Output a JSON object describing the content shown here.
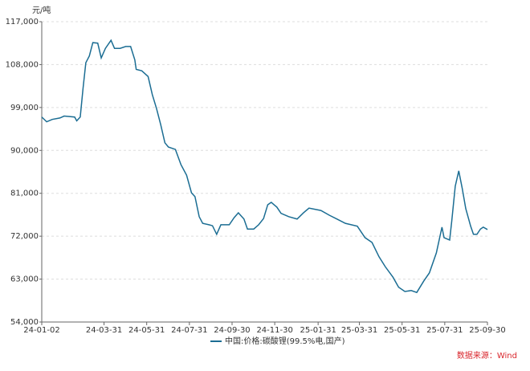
{
  "chart_data": {
    "type": "line",
    "y_unit": "元/吨",
    "source": "数据来源：Wind",
    "x": [
      "24-01-02",
      "24-01-09",
      "24-01-17",
      "24-01-28",
      "24-02-03",
      "24-02-18",
      "24-02-21",
      "24-02-26",
      "24-03-01",
      "24-03-05",
      "24-03-10",
      "24-03-15",
      "24-03-22",
      "24-03-27",
      "24-04-02",
      "24-04-10",
      "24-04-15",
      "24-04-23",
      "24-05-01",
      "24-05-08",
      "24-05-14",
      "24-05-16",
      "24-05-24",
      "24-06-02",
      "24-06-08",
      "24-06-14",
      "24-06-20",
      "24-06-26",
      "24-07-01",
      "24-07-11",
      "24-07-19",
      "24-07-27",
      "24-08-03",
      "24-08-08",
      "24-08-14",
      "24-08-19",
      "24-08-28",
      "24-09-02",
      "24-09-08",
      "24-09-14",
      "24-09-26",
      "24-10-03",
      "24-10-09",
      "24-10-17",
      "24-10-22",
      "24-10-31",
      "24-11-07",
      "24-11-14",
      "24-11-20",
      "24-11-25",
      "24-12-03",
      "24-12-09",
      "24-12-20",
      "25-01-01",
      "25-01-10",
      "25-01-18",
      "25-02-04",
      "25-02-16",
      "25-02-27",
      "25-03-11",
      "25-03-28",
      "25-04-08",
      "25-04-18",
      "25-04-28",
      "25-05-07",
      "25-05-18",
      "25-05-26",
      "25-06-04",
      "25-06-13",
      "25-06-21",
      "25-07-01",
      "25-07-09",
      "25-07-19",
      "25-07-27",
      "25-07-30",
      "25-08-07",
      "25-08-10",
      "25-08-15",
      "25-08-20",
      "25-08-25",
      "25-08-30",
      "25-09-06",
      "25-09-10",
      "25-09-15",
      "25-09-20",
      "25-09-24",
      "25-09-30"
    ],
    "series": [
      {
        "name": "中国:价格:碳酸锂(99.5%电,国产)",
        "color": "#1b6d93",
        "values": [
          97000,
          96000,
          96500,
          96800,
          97200,
          97000,
          96200,
          97000,
          103000,
          108400,
          109800,
          112600,
          112500,
          109400,
          111400,
          113100,
          111400,
          111400,
          111800,
          111800,
          109000,
          107000,
          106700,
          105500,
          101700,
          98800,
          95400,
          91600,
          90700,
          90200,
          87000,
          84800,
          81100,
          80300,
          76100,
          74700,
          74400,
          74200,
          72400,
          74400,
          74400,
          75900,
          76900,
          75600,
          73500,
          73500,
          74400,
          75700,
          78600,
          79100,
          78100,
          76800,
          76100,
          75600,
          76900,
          77900,
          77400,
          76400,
          75600,
          74700,
          74100,
          71700,
          70700,
          67700,
          65600,
          63400,
          61300,
          60400,
          60600,
          60200,
          62600,
          64300,
          68500,
          73900,
          71700,
          71200,
          75200,
          82500,
          85700,
          82000,
          77800,
          74100,
          72400,
          72400,
          73500,
          73900,
          73400
        ]
      }
    ],
    "xlim": [
      "24-01-02",
      "25-09-30"
    ],
    "xticks": [
      "24-01-02",
      "24-03-31",
      "24-05-31",
      "24-07-31",
      "24-09-30",
      "24-11-30",
      "25-01-31",
      "25-03-31",
      "25-05-31",
      "25-07-31",
      "25-09-30"
    ],
    "ylim": [
      54000,
      117000
    ],
    "yticks": [
      {
        "value": 54000,
        "label": "54,000"
      },
      {
        "value": 63000,
        "label": "63,000"
      },
      {
        "value": 72000,
        "label": "72,000"
      },
      {
        "value": 81000,
        "label": "81,000"
      },
      {
        "value": 90000,
        "label": "90,000"
      },
      {
        "value": 99000,
        "label": "99,000"
      },
      {
        "value": 108000,
        "label": "108,000"
      },
      {
        "value": 117000,
        "label": "117,000"
      }
    ],
    "grid": true
  }
}
